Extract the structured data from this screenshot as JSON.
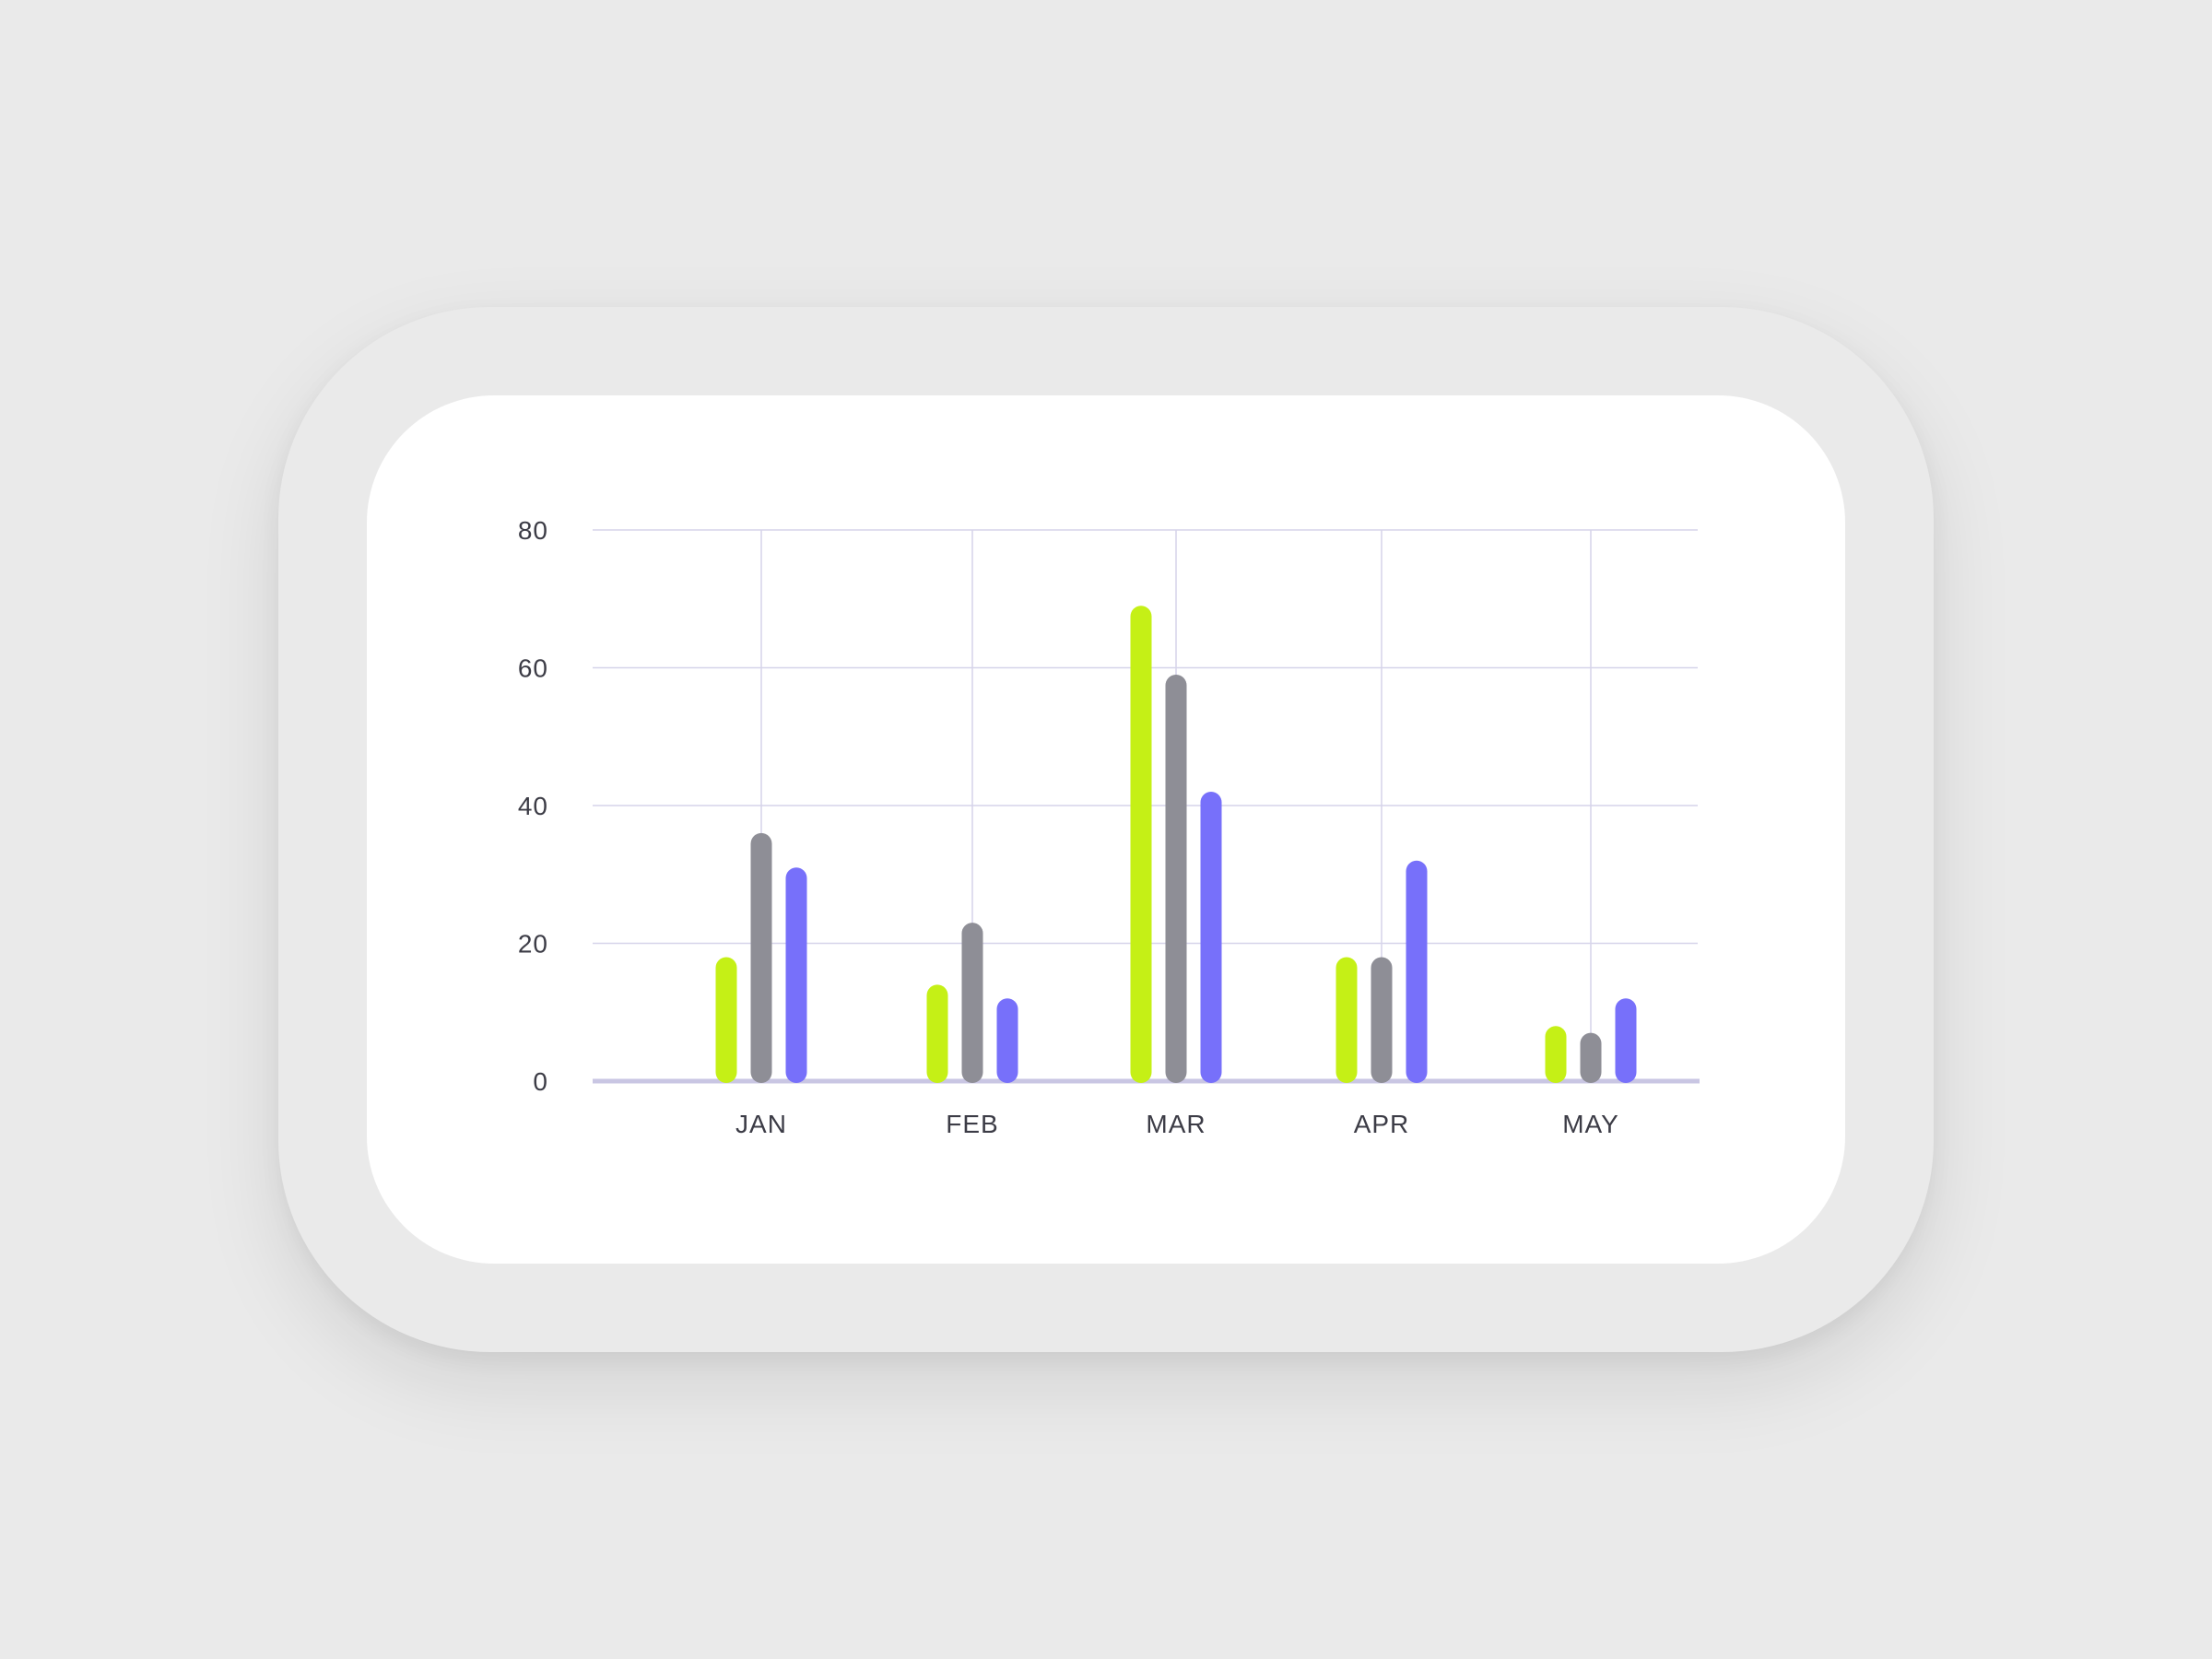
{
  "chart_data": {
    "type": "bar",
    "categories": [
      "JAN",
      "FEB",
      "MAR",
      "APR",
      "MAY"
    ],
    "series": [
      {
        "color": "#C5F016",
        "values": [
          18,
          14,
          69,
          18,
          8
        ]
      },
      {
        "color": "#8E8E96",
        "values": [
          36,
          23,
          59,
          18,
          7
        ]
      },
      {
        "color": "#7770FA",
        "values": [
          31,
          12,
          42,
          32,
          12
        ]
      }
    ],
    "yticks": [
      0,
      20,
      40,
      60,
      80
    ],
    "ylim": [
      0,
      80
    ],
    "xlabel": "",
    "ylabel": "",
    "title": "",
    "grid": true,
    "legend": "none"
  },
  "colors": {
    "grid": "#D6D4EA",
    "baseline": "#C9C6E3",
    "label": "#3C3C46"
  }
}
